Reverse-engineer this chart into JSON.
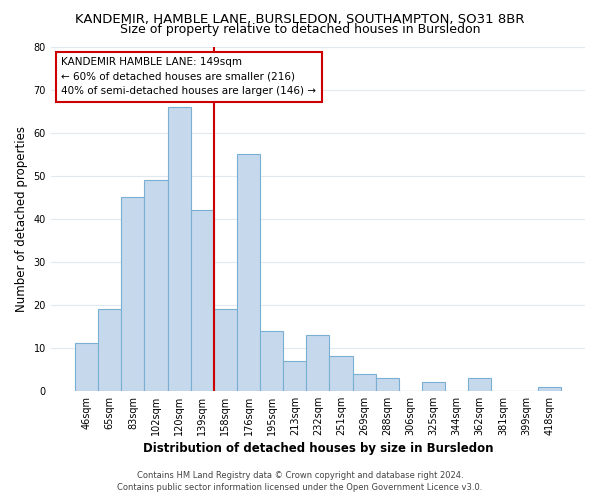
{
  "title": "KANDEMIR, HAMBLE LANE, BURSLEDON, SOUTHAMPTON, SO31 8BR",
  "subtitle": "Size of property relative to detached houses in Bursledon",
  "xlabel": "Distribution of detached houses by size in Bursledon",
  "ylabel": "Number of detached properties",
  "categories": [
    "46sqm",
    "65sqm",
    "83sqm",
    "102sqm",
    "120sqm",
    "139sqm",
    "158sqm",
    "176sqm",
    "195sqm",
    "213sqm",
    "232sqm",
    "251sqm",
    "269sqm",
    "288sqm",
    "306sqm",
    "325sqm",
    "344sqm",
    "362sqm",
    "381sqm",
    "399sqm",
    "418sqm"
  ],
  "values": [
    11,
    19,
    45,
    49,
    66,
    42,
    19,
    55,
    14,
    7,
    13,
    8,
    4,
    3,
    0,
    2,
    0,
    3,
    0,
    0,
    1
  ],
  "bar_color": "#c6d9ec",
  "bar_edge_color": "#7aafd4",
  "vline_x_index": 5.5,
  "vline_color": "#cc0000",
  "ylim": [
    0,
    80
  ],
  "yticks": [
    0,
    10,
    20,
    30,
    40,
    50,
    60,
    70,
    80
  ],
  "annotation_title": "KANDEMIR HAMBLE LANE: 149sqm",
  "annotation_line1": "← 60% of detached houses are smaller (216)",
  "annotation_line2": "40% of semi-detached houses are larger (146) →",
  "annotation_box_color": "#ffffff",
  "annotation_box_edge": "#cc0000",
  "footer_line1": "Contains HM Land Registry data © Crown copyright and database right 2024.",
  "footer_line2": "Contains public sector information licensed under the Open Government Licence v3.0.",
  "background_color": "#ffffff",
  "grid_color": "#e0e8f0",
  "title_fontsize": 9.5,
  "subtitle_fontsize": 9,
  "axis_label_fontsize": 8.5,
  "tick_fontsize": 7,
  "annotation_fontsize": 7.5,
  "footer_fontsize": 6
}
